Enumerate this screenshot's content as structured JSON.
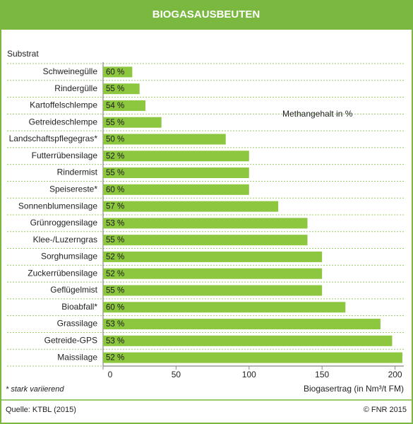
{
  "chart_data": {
    "type": "bar",
    "orientation": "horizontal",
    "title": "BIOGASAUSBEUTEN",
    "y_label": "Substrat",
    "x_label": "Biogasertrag (in Nm³/t FM)",
    "categories": [
      "Schweinegülle",
      "Rindergülle",
      "Kartoffelschlempe",
      "Getreideschlempe",
      "Landschaftspflegegras*",
      "Futterrübensilage",
      "Rindermist",
      "Speisereste*",
      "Sonnenblumensilage",
      "Grünroggensilage",
      "Klee-/Luzerngras",
      "Sorghumsilage",
      "Zuckerrübensilage",
      "Geflügelmist",
      "Bioabfall*",
      "Grassilage",
      "Getreide-GPS",
      "Maissilage"
    ],
    "values": [
      20,
      25,
      29,
      40,
      84,
      100,
      100,
      100,
      120,
      140,
      140,
      150,
      150,
      150,
      166,
      190,
      198,
      205
    ],
    "color": "#8dc63f",
    "methane": {
      "label": "Methangehalt in %",
      "values": [
        60,
        55,
        54,
        55,
        50,
        52,
        55,
        60,
        57,
        53,
        55,
        52,
        52,
        55,
        60,
        53,
        53,
        52
      ],
      "value_labels": [
        "60 %",
        "55 %",
        "54 %",
        "55 %",
        "50 %",
        "52 %",
        "55 %",
        "60 %",
        "57 %",
        "53 %",
        "55 %",
        "52 %",
        "52 %",
        "55 %",
        "60 %",
        "53 %",
        "53 %",
        "52 %"
      ]
    },
    "xlim": [
      0,
      206
    ],
    "xticks": [
      0,
      50,
      100,
      150,
      200
    ],
    "footnote": "* stark variierend",
    "source": "Quelle: KTBL (2015)",
    "copyright": "© FNR 2015"
  }
}
